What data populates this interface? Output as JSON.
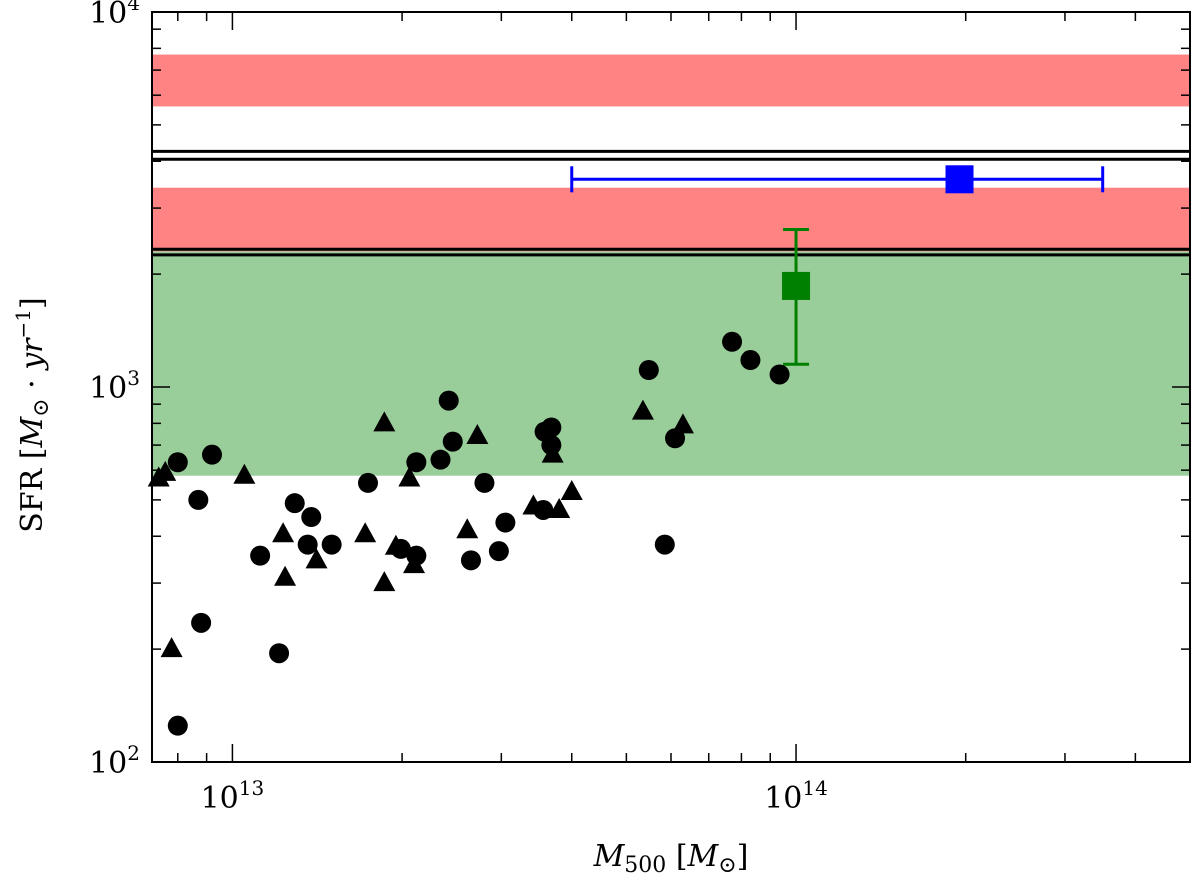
{
  "chart_data": {
    "type": "scatter",
    "xscale": "log",
    "yscale": "log",
    "xlim": [
      7200000000000.0,
      500000000000000.0
    ],
    "ylim": [
      100,
      10000
    ],
    "xlabel": "M500 [M⊙]",
    "ylabel": "SFR [M⊙ · yr⁻¹]",
    "x_ticks": [
      {
        "value": 10000000000000.0,
        "base": "10",
        "exp": "13"
      },
      {
        "value": 100000000000000.0,
        "base": "10",
        "exp": "14"
      }
    ],
    "y_ticks": [
      {
        "value": 100,
        "base": "10",
        "exp": "2"
      },
      {
        "value": 1000,
        "base": "10",
        "exp": "3"
      },
      {
        "value": 10000,
        "base": "10",
        "exp": "4"
      }
    ],
    "bands": [
      {
        "name": "green-band",
        "y0": 580,
        "y1": 2300,
        "color": "#7fc07f",
        "opacity": 0.8
      },
      {
        "name": "red-band-lower",
        "y0": 2300,
        "y1": 3400,
        "color": "#ff5a5a",
        "opacity": 0.75
      },
      {
        "name": "red-band-upper",
        "y0": 5600,
        "y1": 7700,
        "color": "#ff5a5a",
        "opacity": 0.75
      }
    ],
    "hlines": [
      {
        "name": "hline-1",
        "y": 2250
      },
      {
        "name": "hline-2",
        "y": 2330
      },
      {
        "name": "hline-3",
        "y": 4050
      },
      {
        "name": "hline-4",
        "y": 4250
      }
    ],
    "series": [
      {
        "name": "circles",
        "marker": "circle",
        "color": "#000000",
        "points": [
          {
            "x": 8000000000000.0,
            "y": 125
          },
          {
            "x": 8000000000000.0,
            "y": 630
          },
          {
            "x": 8700000000000.0,
            "y": 500
          },
          {
            "x": 8800000000000.0,
            "y": 235
          },
          {
            "x": 9200000000000.0,
            "y": 660
          },
          {
            "x": 11200000000000.0,
            "y": 355
          },
          {
            "x": 12100000000000.0,
            "y": 195
          },
          {
            "x": 12900000000000.0,
            "y": 490
          },
          {
            "x": 13600000000000.0,
            "y": 380
          },
          {
            "x": 13800000000000.0,
            "y": 450
          },
          {
            "x": 15000000000000.0,
            "y": 380
          },
          {
            "x": 17400000000000.0,
            "y": 555
          },
          {
            "x": 19900000000000.0,
            "y": 370
          },
          {
            "x": 21200000000000.0,
            "y": 355
          },
          {
            "x": 21200000000000.0,
            "y": 630
          },
          {
            "x": 23400000000000.0,
            "y": 640
          },
          {
            "x": 24200000000000.0,
            "y": 920
          },
          {
            "x": 24600000000000.0,
            "y": 715
          },
          {
            "x": 26500000000000.0,
            "y": 345
          },
          {
            "x": 28000000000000.0,
            "y": 555
          },
          {
            "x": 29700000000000.0,
            "y": 365
          },
          {
            "x": 30500000000000.0,
            "y": 435
          },
          {
            "x": 35600000000000.0,
            "y": 470
          },
          {
            "x": 35800000000000.0,
            "y": 760
          },
          {
            "x": 36800000000000.0,
            "y": 780
          },
          {
            "x": 36800000000000.0,
            "y": 700
          },
          {
            "x": 54800000000000.0,
            "y": 1110
          },
          {
            "x": 58500000000000.0,
            "y": 380
          },
          {
            "x": 61000000000000.0,
            "y": 730
          },
          {
            "x": 77000000000000.0,
            "y": 1320
          },
          {
            "x": 83000000000000.0,
            "y": 1180
          },
          {
            "x": 93500000000000.0,
            "y": 1080
          }
        ]
      },
      {
        "name": "triangles",
        "marker": "triangle",
        "color": "#000000",
        "points": [
          {
            "x": 7400000000000.0,
            "y": 570
          },
          {
            "x": 7600000000000.0,
            "y": 590
          },
          {
            "x": 7800000000000.0,
            "y": 200
          },
          {
            "x": 10500000000000.0,
            "y": 580
          },
          {
            "x": 12300000000000.0,
            "y": 405
          },
          {
            "x": 12400000000000.0,
            "y": 310
          },
          {
            "x": 14100000000000.0,
            "y": 345
          },
          {
            "x": 17200000000000.0,
            "y": 405
          },
          {
            "x": 18600000000000.0,
            "y": 800
          },
          {
            "x": 18600000000000.0,
            "y": 300
          },
          {
            "x": 19500000000000.0,
            "y": 375
          },
          {
            "x": 20600000000000.0,
            "y": 570
          },
          {
            "x": 21000000000000.0,
            "y": 335
          },
          {
            "x": 26100000000000.0,
            "y": 415
          },
          {
            "x": 27200000000000.0,
            "y": 740
          },
          {
            "x": 34200000000000.0,
            "y": 480
          },
          {
            "x": 37000000000000.0,
            "y": 660
          },
          {
            "x": 38000000000000.0,
            "y": 470
          },
          {
            "x": 40000000000000.0,
            "y": 525
          },
          {
            "x": 53500000000000.0,
            "y": 860
          },
          {
            "x": 63000000000000.0,
            "y": 790
          }
        ]
      },
      {
        "name": "green-square",
        "marker": "square",
        "color": "#008000",
        "points": [
          {
            "x": 100000000000000.0,
            "y": 1860,
            "yerr_low": 1150,
            "yerr_high": 2630
          }
        ]
      },
      {
        "name": "blue-square",
        "marker": "square",
        "color": "#0000ff",
        "points": [
          {
            "x": 195000000000000.0,
            "y": 3580,
            "xerr_low": 40000000000000.0,
            "xerr_high": 350000000000000.0
          }
        ]
      }
    ]
  }
}
